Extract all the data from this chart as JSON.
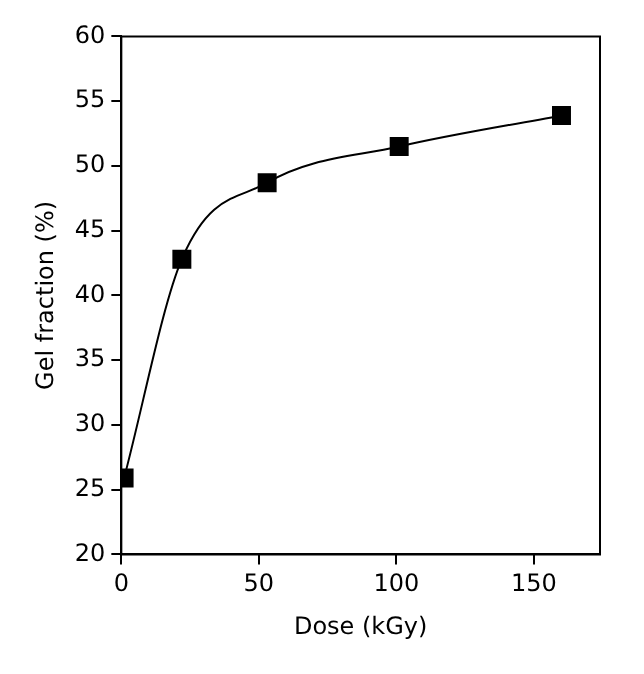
{
  "chart_data": {
    "type": "line",
    "xlabel": "Dose (kGy)",
    "ylabel": "Gel fraction (%)",
    "x": [
      1,
      22,
      53,
      101,
      160
    ],
    "series": [
      {
        "color": "#000000",
        "values": [
          25.9,
          42.8,
          48.7,
          51.5,
          53.9
        ]
      }
    ],
    "xlim": [
      0,
      174
    ],
    "xticks": [
      0,
      50,
      100,
      150
    ],
    "ylim": [
      20,
      60
    ],
    "yticks": [
      20,
      25,
      30,
      35,
      40,
      45,
      50,
      55,
      60
    ],
    "marker": "square",
    "line_style": "solid",
    "grid": false,
    "legend": false
  }
}
